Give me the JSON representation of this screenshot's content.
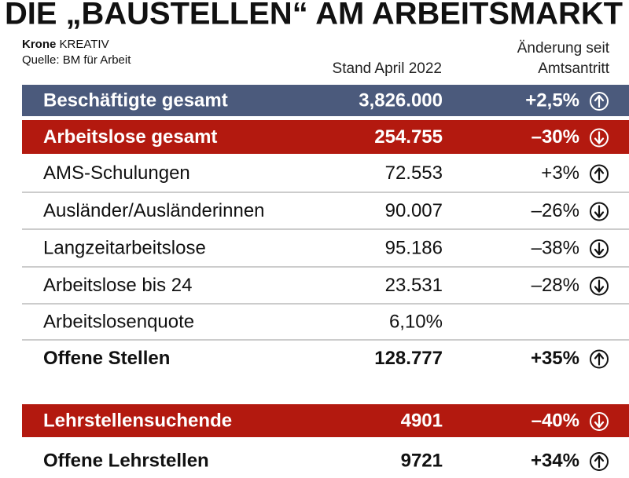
{
  "title": "DIE „BAUSTELLEN“ AM ARBEITSMARKT",
  "brand_bold": "Krone",
  "brand": "KREATIV",
  "source": "Quelle: BM für Arbeit",
  "columns": {
    "stand": "Stand April 2022",
    "change": [
      "Änderung seit",
      "Amtsantritt"
    ]
  },
  "table": {
    "rows": [
      [
        "Beschäftigte gesamt",
        "3,826.000",
        "+2,5%"
      ],
      [
        "Arbeitslose gesamt",
        "254.755",
        "–30%"
      ],
      [
        "AMS-Schulungen",
        "72.553",
        "+3%"
      ],
      [
        "Ausländer/Ausländerinnen",
        "90.007",
        "–26%"
      ],
      [
        "Langzeitarbeitslose",
        "95.186",
        "–38%"
      ],
      [
        "Arbeitslose bis 24",
        "23.531",
        "–28%"
      ],
      [
        "Arbeitslosenquote",
        "6,10%"
      ],
      [
        "Offene Stellen",
        "128.777",
        "+35%"
      ],
      [
        "Lehrstellensuchende",
        "4901",
        "–40%"
      ],
      [
        "Offene Lehrstellen",
        "9721",
        "+34%"
      ]
    ]
  }
}
